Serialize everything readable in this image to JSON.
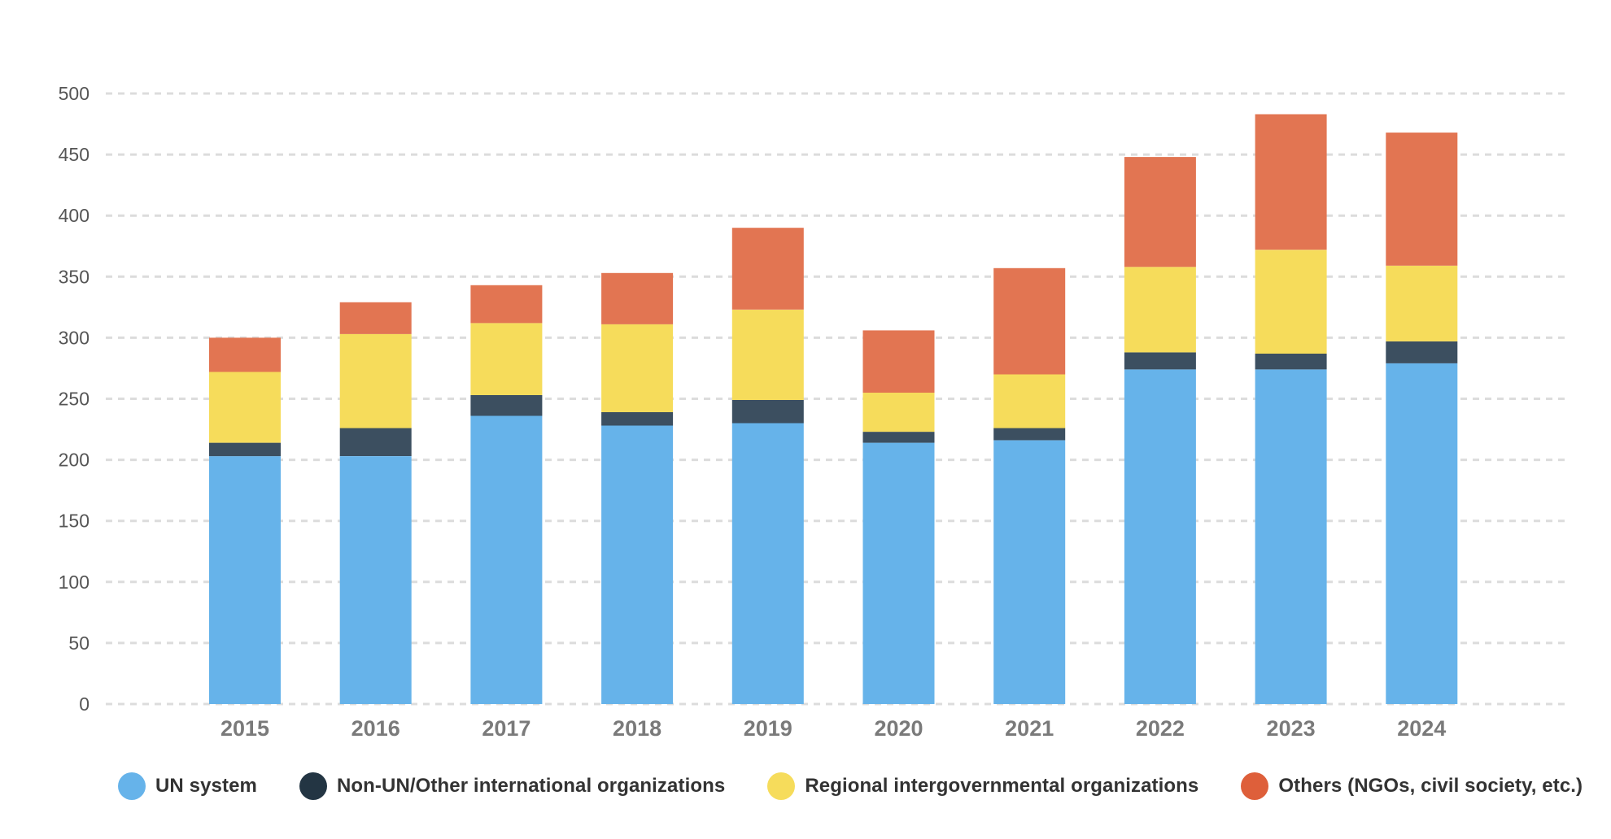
{
  "chart_data": {
    "type": "bar",
    "stacked": true,
    "title": "",
    "xlabel": "",
    "ylabel": "",
    "ylim": [
      0,
      500
    ],
    "yticks": [
      0,
      50,
      100,
      150,
      200,
      250,
      300,
      350,
      400,
      450,
      500
    ],
    "ytick_labels": [
      "0",
      "50",
      "100",
      "150",
      "200",
      "250",
      "300",
      "350",
      "400",
      "450",
      "500"
    ],
    "grid": true,
    "legend_position": "bottom",
    "categories": [
      "2015",
      "2016",
      "2017",
      "2018",
      "2019",
      "2020",
      "2021",
      "2022",
      "2023",
      "2024"
    ],
    "series": [
      {
        "name": "UN system",
        "color": "#66B3EA",
        "values": [
          203,
          203,
          236,
          228,
          230,
          214,
          216,
          274,
          274,
          279
        ]
      },
      {
        "name": "Non-UN/Other international organizations",
        "color": "#3C4F60",
        "values": [
          11,
          23,
          17,
          11,
          19,
          9,
          10,
          14,
          13,
          18
        ]
      },
      {
        "name": "Regional intergovernmental organizations",
        "color": "#F6DC5B",
        "values": [
          58,
          77,
          59,
          72,
          74,
          32,
          44,
          70,
          85,
          62
        ]
      },
      {
        "name": "Others (NGOs, civil society, etc.)",
        "color": "#E27552",
        "values": [
          28,
          26,
          31,
          42,
          67,
          51,
          87,
          90,
          111,
          109
        ]
      }
    ]
  },
  "legend": {
    "items": [
      {
        "label": "UN system",
        "color": "#66B3EA"
      },
      {
        "label": "Non-UN/Other international organizations",
        "color": "#233543"
      },
      {
        "label": "Regional intergovernmental organizations",
        "color": "#F6DC5B"
      },
      {
        "label": "Others (NGOs, civil society, etc.)",
        "color": "#DE5F3A"
      }
    ]
  }
}
